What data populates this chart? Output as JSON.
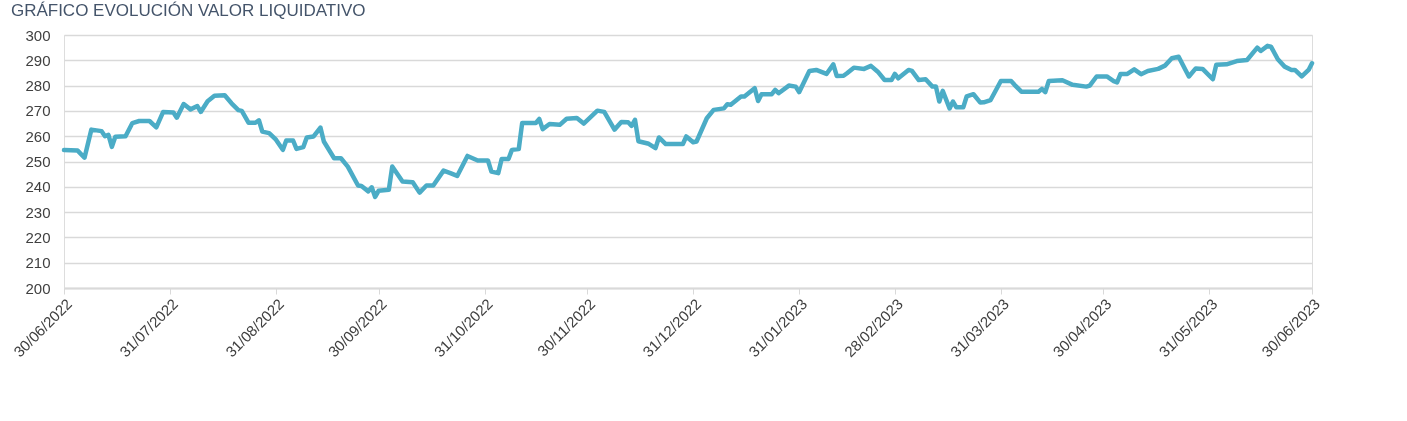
{
  "chart_data": {
    "type": "line",
    "title": "GRÁFICO EVOLUCIÓN VALOR LIQUIDATIVO",
    "x": [
      "2022-06-30",
      "2022-07-04",
      "2022-07-06",
      "2022-07-08",
      "2022-07-11",
      "2022-07-12",
      "2022-07-13",
      "2022-07-14",
      "2022-07-15",
      "2022-07-18",
      "2022-07-20",
      "2022-07-22",
      "2022-07-25",
      "2022-07-27",
      "2022-07-29",
      "2022-08-01",
      "2022-08-02",
      "2022-08-04",
      "2022-08-06",
      "2022-08-08",
      "2022-08-09",
      "2022-08-11",
      "2022-08-13",
      "2022-08-16",
      "2022-08-18",
      "2022-08-20",
      "2022-08-21",
      "2022-08-23",
      "2022-08-25",
      "2022-08-26",
      "2022-08-27",
      "2022-08-29",
      "2022-08-31",
      "2022-09-02",
      "2022-09-03",
      "2022-09-05",
      "2022-09-06",
      "2022-09-08",
      "2022-09-09",
      "2022-09-11",
      "2022-09-13",
      "2022-09-14",
      "2022-09-17",
      "2022-09-19",
      "2022-09-21",
      "2022-09-24",
      "2022-09-25",
      "2022-09-27",
      "2022-09-28",
      "2022-09-29",
      "2022-09-30",
      "2022-10-03",
      "2022-10-04",
      "2022-10-07",
      "2022-10-10",
      "2022-10-12",
      "2022-10-14",
      "2022-10-16",
      "2022-10-19",
      "2022-10-21",
      "2022-10-23",
      "2022-10-26",
      "2022-10-29",
      "2022-11-01",
      "2022-11-02",
      "2022-11-04",
      "2022-11-05",
      "2022-11-07",
      "2022-11-08",
      "2022-11-10",
      "2022-11-11",
      "2022-11-15",
      "2022-11-16",
      "2022-11-17",
      "2022-11-19",
      "2022-11-22",
      "2022-11-24",
      "2022-11-27",
      "2022-11-29",
      "2022-12-03",
      "2022-12-05",
      "2022-12-08",
      "2022-12-10",
      "2022-12-12",
      "2022-12-13",
      "2022-12-14",
      "2022-12-15",
      "2022-12-18",
      "2022-12-20",
      "2022-12-21",
      "2022-12-23",
      "2022-12-28",
      "2022-12-29",
      "2022-12-31",
      "2023-01-01",
      "2023-01-04",
      "2023-01-06",
      "2023-01-09",
      "2023-01-10",
      "2023-01-11",
      "2023-01-14",
      "2023-01-15",
      "2023-01-18",
      "2023-01-19",
      "2023-01-20",
      "2023-01-23",
      "2023-01-24",
      "2023-01-25",
      "2023-01-28",
      "2023-01-30",
      "2023-01-31",
      "2023-02-03",
      "2023-02-05",
      "2023-02-08",
      "2023-02-10",
      "2023-02-11",
      "2023-02-13",
      "2023-02-14",
      "2023-02-16",
      "2023-02-19",
      "2023-02-21",
      "2023-02-23",
      "2023-02-25",
      "2023-02-27",
      "2023-02-28",
      "2023-03-01",
      "2023-03-04",
      "2023-03-05",
      "2023-03-07",
      "2023-03-09",
      "2023-03-11",
      "2023-03-12",
      "2023-03-13",
      "2023-03-14",
      "2023-03-16",
      "2023-03-17",
      "2023-03-18",
      "2023-03-20",
      "2023-03-21",
      "2023-03-23",
      "2023-03-25",
      "2023-03-26",
      "2023-03-28",
      "2023-03-31",
      "2023-04-03",
      "2023-04-04",
      "2023-04-06",
      "2023-04-11",
      "2023-04-12",
      "2023-04-13",
      "2023-04-14",
      "2023-04-18",
      "2023-04-21",
      "2023-04-25",
      "2023-04-26",
      "2023-04-28",
      "2023-05-01",
      "2023-05-03",
      "2023-05-04",
      "2023-05-05",
      "2023-05-07",
      "2023-05-09",
      "2023-05-11",
      "2023-05-13",
      "2023-05-16",
      "2023-05-18",
      "2023-05-20",
      "2023-05-22",
      "2023-05-24",
      "2023-05-25",
      "2023-05-27",
      "2023-05-29",
      "2023-06-01",
      "2023-06-02",
      "2023-06-05",
      "2023-06-08",
      "2023-06-11",
      "2023-06-14",
      "2023-06-15",
      "2023-06-17",
      "2023-06-18",
      "2023-06-20",
      "2023-06-22",
      "2023-06-24",
      "2023-06-25",
      "2023-06-27",
      "2023-06-29",
      "2023-06-30"
    ],
    "series": [
      {
        "color": "#4bacc6",
        "values": [
          254.5,
          254.3,
          251.5,
          262.6,
          262,
          260,
          260.5,
          255.8,
          259.8,
          260,
          265.2,
          266,
          266,
          263.5,
          269.6,
          269.4,
          267.3,
          272.7,
          270.6,
          271.9,
          269.6,
          273.8,
          276,
          276.2,
          273,
          270.3,
          270,
          265.3,
          265.3,
          266.3,
          261.8,
          261.2,
          258.6,
          254.6,
          258.3,
          258.3,
          255,
          255.7,
          259.5,
          259.9,
          263.4,
          257.9,
          251.3,
          251.3,
          248,
          240.5,
          240.3,
          238.2,
          239.8,
          236,
          238.4,
          238.8,
          248,
          242.1,
          241.8,
          237.7,
          240.5,
          240.5,
          246.4,
          245.4,
          244.3,
          252.2,
          250.4,
          250.4,
          246,
          245.4,
          251,
          251,
          254.6,
          254.9,
          265.2,
          265.2,
          266.8,
          262.8,
          264.8,
          264.5,
          266.9,
          267.2,
          265,
          270.1,
          269.6,
          262.6,
          265.6,
          265.5,
          264.1,
          266.5,
          258,
          257,
          255.3,
          259.5,
          256.9,
          256.9,
          259.9,
          257.6,
          257.9,
          267.1,
          270.4,
          271,
          272.6,
          272.4,
          275.7,
          275.7,
          279,
          273.9,
          276.6,
          276.6,
          278.3,
          277,
          280,
          279.6,
          277.4,
          285.8,
          286.2,
          284.6,
          288.4,
          283.8,
          283.9,
          284.9,
          287.1,
          286.6,
          287.8,
          285.5,
          282.2,
          282.2,
          284.6,
          282.9,
          286.2,
          285.8,
          282.2,
          282.5,
          279.6,
          279.6,
          273.7,
          277.9,
          271,
          273.7,
          271.4,
          271.4,
          275.7,
          276.6,
          273.3,
          273.4,
          274.3,
          281.8,
          281.8,
          280.3,
          277.6,
          277.6,
          278.7,
          277.4,
          281.8,
          282.1,
          280.3,
          279.6,
          280,
          283.6,
          283.6,
          281.8,
          281.3,
          284.6,
          284.6,
          286.4,
          284.5,
          285.8,
          286.6,
          287.9,
          290.8,
          291.4,
          286.2,
          283.6,
          286.8,
          286.6,
          282.5,
          288.2,
          288.4,
          289.7,
          290.1,
          295,
          293.7,
          295.7,
          295.4,
          290.4,
          287.5,
          286.2,
          286.2,
          283.6,
          286.2,
          288.8
        ]
      }
    ],
    "xlim": [
      "2022-06-30",
      "2023-06-30"
    ],
    "xticks": [
      {
        "value": "2022-06-30",
        "label": "30/06/2022"
      },
      {
        "value": "2022-07-31",
        "label": "31/07/2022"
      },
      {
        "value": "2022-08-31",
        "label": "31/08/2022"
      },
      {
        "value": "2022-09-30",
        "label": "30/09/2022"
      },
      {
        "value": "2022-10-31",
        "label": "31/10/2022"
      },
      {
        "value": "2022-11-30",
        "label": "30/11/2022"
      },
      {
        "value": "2022-12-31",
        "label": "31/12/2022"
      },
      {
        "value": "2023-01-31",
        "label": "31/01/2023"
      },
      {
        "value": "2023-02-28",
        "label": "28/02/2023"
      },
      {
        "value": "2023-03-31",
        "label": "31/03/2023"
      },
      {
        "value": "2023-04-30",
        "label": "30/04/2023"
      },
      {
        "value": "2023-05-31",
        "label": "31/05/2023"
      },
      {
        "value": "2023-06-30",
        "label": "30/06/2023"
      }
    ],
    "ylim": [
      200,
      300
    ],
    "yticks": [
      200,
      210,
      220,
      230,
      240,
      250,
      260,
      270,
      280,
      290,
      300
    ],
    "grid": "y",
    "legend": false,
    "marker": "none",
    "line_style": "solid"
  }
}
